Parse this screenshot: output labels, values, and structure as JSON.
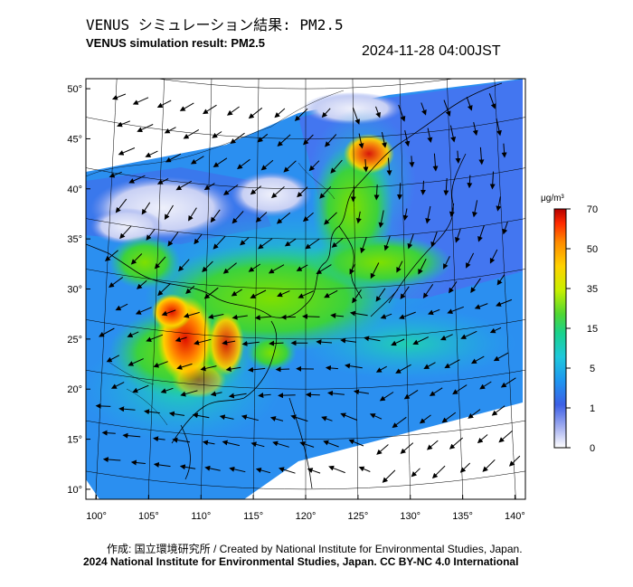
{
  "header": {
    "title_jp": "VENUS シミュレーション結果: PM2.5",
    "title_en": "VENUS simulation result: PM2.5",
    "timestamp": "2024-11-28 04:00JST"
  },
  "map": {
    "lat_labels": [
      "50°",
      "45°",
      "40°",
      "35°",
      "30°",
      "25°",
      "20°",
      "15°",
      "10°"
    ],
    "lon_labels": [
      "100°",
      "105°",
      "110°",
      "115°",
      "120°",
      "125°",
      "130°",
      "135°",
      "140°"
    ],
    "lat_values": [
      50,
      45,
      40,
      35,
      30,
      25,
      20,
      15,
      10
    ],
    "lon_values": [
      100,
      105,
      110,
      115,
      120,
      125,
      130,
      135,
      140
    ],
    "lat_range": [
      9,
      51
    ],
    "lon_range": [
      99,
      141
    ],
    "grid": true,
    "wind_vectors": true
  },
  "colorbar": {
    "unit": "μg/m³",
    "tick_labels": [
      "70",
      "50",
      "35",
      "15",
      "5",
      "1",
      "0"
    ],
    "tick_values": [
      70,
      50,
      35,
      15,
      5,
      1,
      0
    ],
    "colors": [
      "#b40000",
      "#ff2a00",
      "#ff8c00",
      "#ffd200",
      "#c8f000",
      "#50d732",
      "#19d28c",
      "#1ec8dc",
      "#1e96f0",
      "#3c5fe6",
      "#aab4f0",
      "#ffffff"
    ]
  },
  "footer": {
    "credit_jp_en": "作成: 国立環境研究所 / Created by National Institute for Environmental Studies, Japan.",
    "copyright": "2024 National Institute for Environmental Studies, Japan. CC BY-NC 4.0 International"
  }
}
